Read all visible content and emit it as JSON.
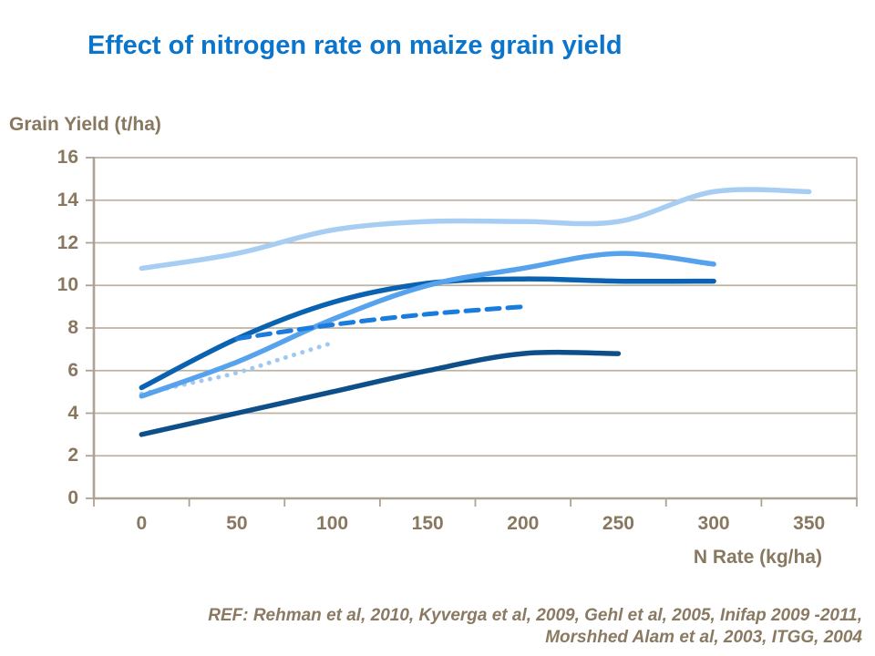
{
  "title": {
    "text": "Effect of nitrogen rate on maize grain yield",
    "color": "#0B75CC"
  },
  "footer": {
    "ref_line1": "REF: Rehman et al, 2010, Kyverga et al, 2009, Gehl et al, 2005, Inifap 2009 -2011,",
    "ref_line2": "Morshhed Alam et al, 2003, ITGG, 2004",
    "color": "#8A7A62"
  },
  "chart_data": {
    "type": "line",
    "title": "Effect of nitrogen rate on maize grain yield",
    "xlabel": "N Rate (kg/ha)",
    "ylabel": "Grain Yield (t/ha)",
    "x_tick_labels": [
      "0",
      "50",
      "100",
      "150",
      "200",
      "250",
      "300",
      "350"
    ],
    "y_tick_labels": [
      "0",
      "2",
      "4",
      "6",
      "8",
      "10",
      "12",
      "14",
      "16"
    ],
    "xlim": [
      0,
      400
    ],
    "ylim": [
      0,
      16
    ],
    "grid": "horizontal",
    "legend": "none",
    "axis_color": "#AEA294",
    "gridline_color": "#BCB3A4",
    "axis_text_color": "#88785F",
    "series": [
      {
        "name": "pale-blue-solid",
        "style": "solid",
        "color": "#A7CDF2",
        "x": [
          0,
          50,
          100,
          150,
          200,
          250,
          300,
          350
        ],
        "values": [
          10.8,
          11.5,
          12.6,
          13.0,
          13.0,
          13.0,
          14.4,
          14.4
        ]
      },
      {
        "name": "navy-solid",
        "style": "solid",
        "color": "#0E4E89",
        "x": [
          0,
          50,
          100,
          150,
          200,
          250
        ],
        "values": [
          3.0,
          4.0,
          5.0,
          6.0,
          6.8,
          6.8
        ]
      },
      {
        "name": "pale-blue-dotted",
        "style": "dotted",
        "color": "#A0C8F0",
        "x": [
          0,
          25,
          50,
          75,
          100
        ],
        "values": [
          4.9,
          5.4,
          5.9,
          6.6,
          7.3
        ]
      },
      {
        "name": "dark-blue-solid",
        "style": "solid",
        "color": "#0B62B0",
        "x": [
          0,
          50,
          100,
          150,
          200,
          250,
          300
        ],
        "values": [
          5.2,
          7.5,
          9.2,
          10.1,
          10.3,
          10.2,
          10.2
        ]
      },
      {
        "name": "sky-blue-solid",
        "style": "solid",
        "color": "#56A2EC",
        "x": [
          0,
          50,
          100,
          150,
          200,
          250,
          300
        ],
        "values": [
          4.8,
          6.4,
          8.4,
          10.0,
          10.8,
          11.5,
          11.0
        ]
      },
      {
        "name": "medium-blue-dashed",
        "style": "dashed",
        "color": "#1A7CDC",
        "x": [
          50,
          100,
          150,
          200
        ],
        "values": [
          7.5,
          8.15,
          8.65,
          9.0
        ]
      }
    ]
  }
}
